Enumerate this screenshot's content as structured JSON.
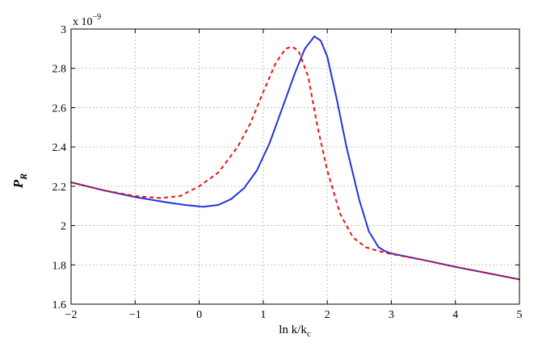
{
  "chart_data": {
    "type": "line",
    "title": "",
    "xlabel": {
      "main": "ln k/k",
      "sub": "c"
    },
    "ylabel": {
      "main": "P",
      "sub": "R"
    },
    "multiplier": {
      "base": "x 10",
      "exp": "−9"
    },
    "xlim": [
      -2,
      5
    ],
    "ylim": [
      1.6,
      3.0
    ],
    "grid": true,
    "x_ticks": [
      {
        "value": -2,
        "label": "−2"
      },
      {
        "value": -1,
        "label": "−1"
      },
      {
        "value": 0,
        "label": "0"
      },
      {
        "value": 1,
        "label": "1"
      },
      {
        "value": 2,
        "label": "2"
      },
      {
        "value": 3,
        "label": "3"
      },
      {
        "value": 4,
        "label": "4"
      },
      {
        "value": 5,
        "label": "5"
      }
    ],
    "y_ticks": [
      {
        "value": 1.6,
        "label": "1.6"
      },
      {
        "value": 1.8,
        "label": "1.8"
      },
      {
        "value": 2.0,
        "label": "2"
      },
      {
        "value": 2.2,
        "label": "2.2"
      },
      {
        "value": 2.4,
        "label": "2.4"
      },
      {
        "value": 2.6,
        "label": "2.6"
      },
      {
        "value": 2.8,
        "label": "2.8"
      },
      {
        "value": 3.0,
        "label": "3"
      }
    ],
    "series": [
      {
        "color": "#2233dd",
        "style": "solid",
        "x": [
          -2,
          -1.5,
          -1,
          -0.5,
          -0.2,
          0,
          0.05,
          0.3,
          0.5,
          0.7,
          0.9,
          1.1,
          1.3,
          1.5,
          1.65,
          1.8,
          1.9,
          2.0,
          2.15,
          2.3,
          2.5,
          2.65,
          2.8,
          2.9,
          3.0,
          3.5,
          4.0,
          4.5,
          5.0
        ],
        "y": [
          2.22,
          2.18,
          2.145,
          2.118,
          2.104,
          2.098,
          2.095,
          2.105,
          2.135,
          2.19,
          2.28,
          2.42,
          2.6,
          2.78,
          2.9,
          2.963,
          2.94,
          2.86,
          2.64,
          2.4,
          2.13,
          1.97,
          1.89,
          1.87,
          1.858,
          1.825,
          1.79,
          1.758,
          1.726
        ]
      },
      {
        "color": "#ee1111",
        "style": "dashed",
        "x": [
          -2,
          -1.5,
          -1,
          -0.6,
          -0.3,
          0,
          0.3,
          0.6,
          0.8,
          1.0,
          1.2,
          1.35,
          1.45,
          1.55,
          1.7,
          1.85,
          2.0,
          2.2,
          2.4,
          2.6,
          2.8,
          3.0,
          3.5,
          4.0,
          4.5,
          5.0
        ],
        "y": [
          2.22,
          2.18,
          2.15,
          2.14,
          2.15,
          2.2,
          2.27,
          2.4,
          2.52,
          2.68,
          2.83,
          2.9,
          2.91,
          2.89,
          2.76,
          2.5,
          2.28,
          2.06,
          1.94,
          1.89,
          1.87,
          1.855,
          1.825,
          1.79,
          1.758,
          1.726
        ]
      }
    ]
  }
}
